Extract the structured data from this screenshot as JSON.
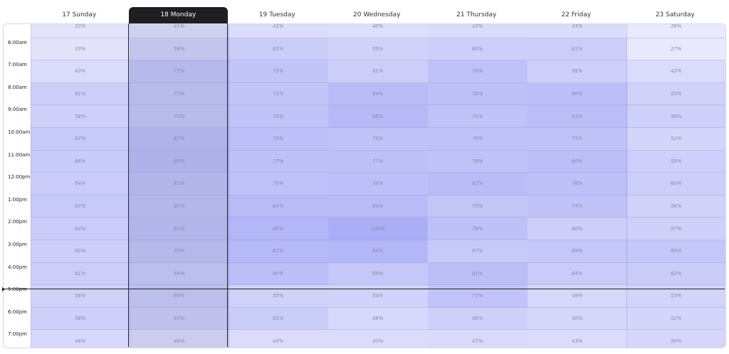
{
  "days": [
    {
      "label": "17 Sunday",
      "selected": false
    },
    {
      "label": "18 Monday",
      "selected": true
    },
    {
      "label": "19 Tuesday",
      "selected": false
    },
    {
      "label": "20 Wednesday",
      "selected": false
    },
    {
      "label": "21 Thursday",
      "selected": false
    },
    {
      "label": "22 Friday",
      "selected": false
    },
    {
      "label": "23 Saturday",
      "selected": false
    }
  ],
  "times": [
    "",
    "6:00am",
    "7:00am",
    "8:00am",
    "9:00am",
    "10:00am",
    "11:00am",
    "12:00pm",
    "1:00pm",
    "2:00pm",
    "3:00pm",
    "4:00pm",
    "5:00pm",
    "6:00pm",
    "7:00pm"
  ],
  "rows": [
    [
      33,
      41,
      42,
      40,
      43,
      43,
      26
    ],
    [
      33,
      58,
      62,
      55,
      60,
      61,
      27
    ],
    [
      43,
      77,
      72,
      61,
      76,
      58,
      43
    ],
    [
      61,
      75,
      72,
      84,
      78,
      80,
      55
    ],
    [
      58,
      75,
      75,
      86,
      75,
      81,
      58
    ],
    [
      67,
      87,
      79,
      75,
      76,
      75,
      52
    ],
    [
      66,
      89,
      77,
      77,
      76,
      80,
      59
    ],
    [
      64,
      81,
      76,
      79,
      82,
      78,
      60
    ],
    [
      67,
      80,
      84,
      84,
      70,
      74,
      56
    ],
    [
      64,
      82,
      89,
      100,
      78,
      60,
      57
    ],
    [
      60,
      79,
      87,
      89,
      67,
      69,
      69
    ],
    [
      61,
      69,
      80,
      69,
      81,
      64,
      62
    ],
    [
      56,
      69,
      55,
      54,
      73,
      49,
      53
    ],
    [
      58,
      63,
      62,
      48,
      58,
      50,
      52
    ],
    [
      48,
      46,
      43,
      43,
      47,
      43,
      50
    ]
  ],
  "colors": {
    "heat": "#8c8cf0",
    "selected_tint": "#b0b4d8",
    "header_selected_bg": "#1f1f23"
  }
}
